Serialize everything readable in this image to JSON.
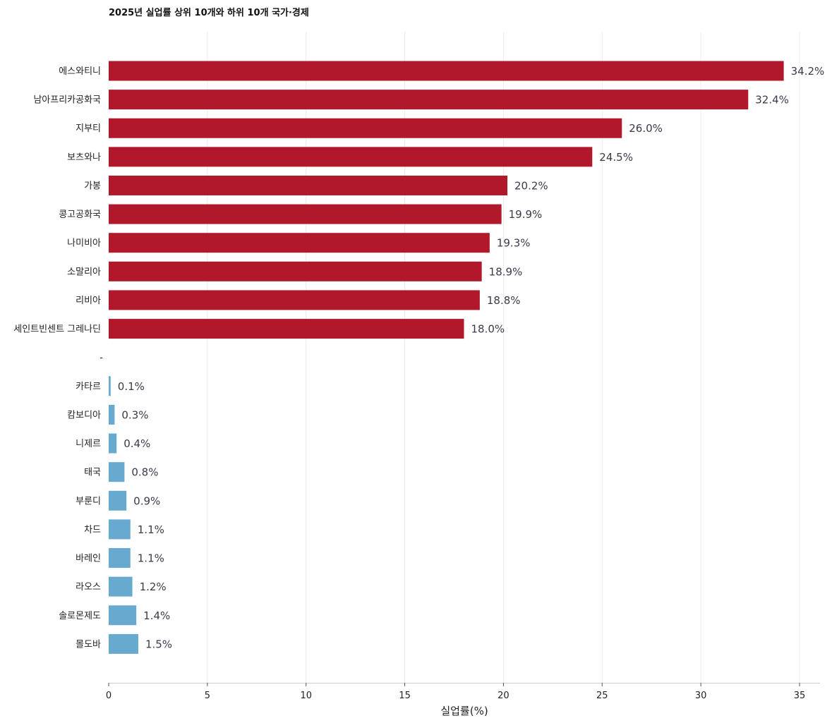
{
  "chart_data": {
    "type": "bar",
    "orientation": "horizontal",
    "title": "2025년 실업률 상위 10개와 하위 10개 국가·경제",
    "xlabel": "실업률(%)",
    "ylabel": "",
    "xlim": [
      0,
      36
    ],
    "xticks": [
      0,
      5,
      10,
      15,
      20,
      25,
      30,
      35
    ],
    "grid": "vertical",
    "separator_label": "-",
    "value_suffix": "%",
    "colors": {
      "top": "#b2182b",
      "bottom": "#67a9cf"
    },
    "series": [
      {
        "group": "top",
        "categories": [
          "에스와티니",
          "남아프리카공화국",
          "지부티",
          "보츠와나",
          "가봉",
          "콩고공화국",
          "나미비아",
          "소말리아",
          "리비아",
          "세인트빈센트 그레나딘"
        ],
        "values": [
          34.2,
          32.4,
          26.0,
          24.5,
          20.2,
          19.9,
          19.3,
          18.9,
          18.8,
          18.0
        ]
      },
      {
        "group": "bottom",
        "categories": [
          "카타르",
          "캄보디아",
          "니제르",
          "태국",
          "부룬디",
          "차드",
          "바레인",
          "라오스",
          "솔로몬제도",
          "몰도바"
        ],
        "values": [
          0.1,
          0.3,
          0.4,
          0.8,
          0.9,
          1.1,
          1.1,
          1.2,
          1.4,
          1.5
        ]
      }
    ]
  }
}
